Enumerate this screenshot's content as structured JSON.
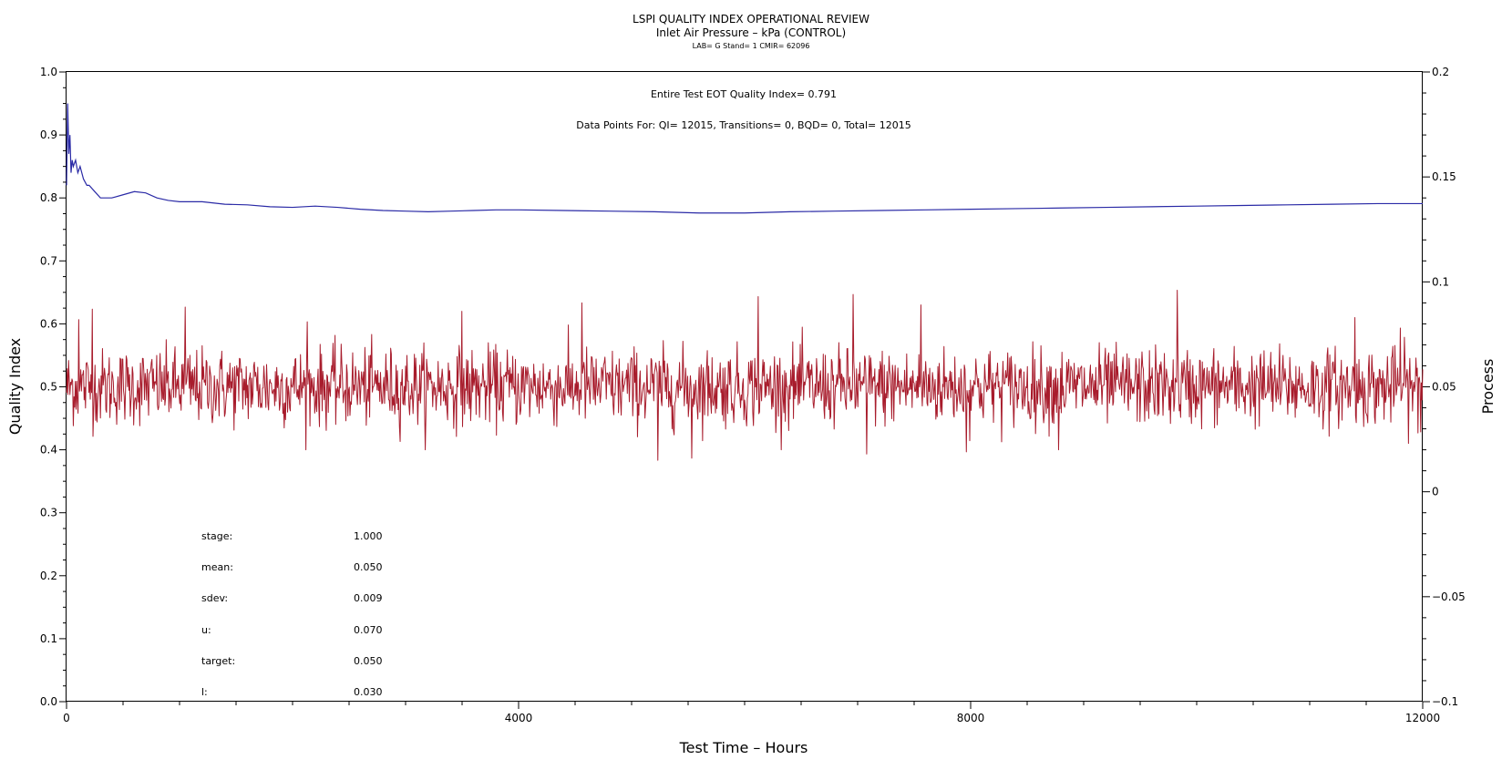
{
  "chart_data": {
    "type": "line",
    "title": "LSPI QUALITY INDEX OPERATIONAL REVIEW",
    "subtitle": "Inlet Air Pressure – kPa (CONTROL)",
    "subtitle2": "LAB= G Stand= 1 CMIR= 62096",
    "xlabel": "Test Time – Hours",
    "ylabel_left": "Quality Index",
    "ylabel_right": "Process",
    "xlim": [
      0,
      12000
    ],
    "ylim_left": [
      0.0,
      1.0
    ],
    "ylim_right": [
      -0.1,
      0.2
    ],
    "x_ticks": [
      0,
      4000,
      8000,
      12000
    ],
    "x_tick_labels": [
      "0",
      "4000",
      "8000",
      "12000"
    ],
    "y_left_ticks": [
      0.0,
      0.1,
      0.2,
      0.3,
      0.4,
      0.5,
      0.6,
      0.7,
      0.8,
      0.9,
      1.0
    ],
    "y_left_tick_labels": [
      "0.0",
      "0.1",
      "0.2",
      "0.3",
      "0.4",
      "0.5",
      "0.6",
      "0.7",
      "0.8",
      "0.9",
      "1.0"
    ],
    "y_right_ticks": [
      -0.1,
      -0.05,
      0,
      0.05,
      0.1,
      0.15,
      0.2
    ],
    "y_right_tick_labels": [
      "−0.1",
      "−0.05",
      "0",
      "0.05",
      "0.1",
      "0.15",
      "0.2"
    ],
    "grid": false,
    "annotations": {
      "eot": "Entire Test EOT Quality Index=   0.791",
      "data_points": "Data Points For: QI= 12015, Transitions=      0, BQD=      0, Total= 12015"
    },
    "stats": [
      {
        "label": "stage:",
        "value": "1.000"
      },
      {
        "label": "mean:",
        "value": "0.050"
      },
      {
        "label": "sdev:",
        "value": "0.009"
      },
      {
        "label": "u:",
        "value": "0.070"
      },
      {
        "label": "target:",
        "value": "0.050"
      },
      {
        "label": "l:",
        "value": "0.030"
      }
    ],
    "series": [
      {
        "axis": "left",
        "color": "#2a2aa6",
        "x": [
          0,
          10,
          20,
          30,
          40,
          50,
          60,
          80,
          100,
          120,
          150,
          180,
          200,
          250,
          300,
          350,
          400,
          500,
          600,
          700,
          800,
          900,
          1000,
          1200,
          1400,
          1600,
          1800,
          2000,
          2200,
          2400,
          2600,
          2800,
          3000,
          3200,
          3400,
          3600,
          3800,
          4000,
          4400,
          4800,
          5200,
          5600,
          6000,
          6400,
          6800,
          7200,
          7600,
          8000,
          8400,
          8800,
          9200,
          9600,
          10000,
          10400,
          10800,
          11200,
          11600,
          12000
        ],
        "values": [
          0.82,
          0.95,
          0.87,
          0.9,
          0.84,
          0.86,
          0.85,
          0.86,
          0.84,
          0.85,
          0.83,
          0.82,
          0.82,
          0.81,
          0.8,
          0.8,
          0.8,
          0.805,
          0.81,
          0.808,
          0.8,
          0.796,
          0.794,
          0.794,
          0.79,
          0.789,
          0.786,
          0.785,
          0.787,
          0.785,
          0.782,
          0.78,
          0.779,
          0.778,
          0.779,
          0.78,
          0.781,
          0.781,
          0.78,
          0.779,
          0.778,
          0.776,
          0.776,
          0.778,
          0.779,
          0.78,
          0.781,
          0.782,
          0.783,
          0.784,
          0.785,
          0.786,
          0.787,
          0.788,
          0.789,
          0.79,
          0.791,
          0.791
        ]
      },
      {
        "axis": "right",
        "color": "#a81c2c",
        "n": 12015,
        "mean": 0.05,
        "sdev": 0.009,
        "x": [
          110,
          230,
          1050,
          2130,
          3500,
          4560,
          5230,
          5530,
          6120,
          6960,
          7080,
          7560,
          7960,
          8780,
          9830,
          11400,
          11800,
          11960
        ],
        "values": [
          0.082,
          0.087,
          0.088,
          0.081,
          0.086,
          0.09,
          0.015,
          0.016,
          0.093,
          0.094,
          0.018,
          0.089,
          0.019,
          0.02,
          0.096,
          0.083,
          0.078,
          0.028
        ]
      }
    ]
  }
}
